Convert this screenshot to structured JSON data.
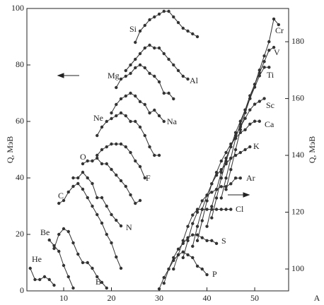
{
  "chart_data": {
    "type": "line",
    "color": "#333333",
    "grid": false,
    "xlabel": "A",
    "ylabel": "Q, МэВ",
    "y2label": "Q, МэВ",
    "xlim": [
      2.3,
      57.1
    ],
    "xticks": [
      10,
      20,
      30,
      40,
      50
    ],
    "ylim": [
      0,
      100
    ],
    "yticks": [
      0,
      20,
      40,
      60,
      80,
      100
    ],
    "y2lim": [
      92.3,
      191.7
    ],
    "y2ticks": [
      100,
      120,
      140,
      160,
      180
    ],
    "series": [
      {
        "name": "He",
        "x": [
          3,
          4,
          5,
          6,
          7,
          8
        ],
        "values": [
          8,
          4,
          4,
          5,
          4,
          2
        ]
      },
      {
        "name": "Be",
        "x": [
          7,
          8,
          9,
          10,
          11,
          12
        ],
        "values": [
          18,
          16,
          14,
          9,
          5,
          1
        ]
      },
      {
        "name": "B",
        "x": [
          8,
          9,
          10,
          11,
          12,
          13,
          14,
          15,
          16,
          17,
          18,
          19
        ],
        "values": [
          15,
          20,
          22,
          21,
          17,
          13,
          10,
          10,
          8,
          5,
          3,
          1
        ]
      },
      {
        "name": "C",
        "x": [
          9,
          10,
          11,
          12,
          13,
          14,
          15,
          16,
          17,
          18,
          19,
          20,
          21,
          22
        ],
        "values": [
          31,
          32,
          35,
          37,
          38,
          36,
          33,
          30,
          27,
          24,
          20,
          17,
          12,
          8
        ]
      },
      {
        "name": "N",
        "x": [
          12,
          13,
          14,
          15,
          16,
          17,
          18,
          19,
          20,
          21,
          22
        ],
        "values": [
          40,
          40,
          42,
          40,
          38,
          33,
          33,
          30,
          27,
          25,
          23
        ]
      },
      {
        "name": "O",
        "x": [
          14,
          15,
          16,
          17,
          18,
          19,
          20,
          21,
          22,
          23,
          24,
          25,
          26
        ],
        "values": [
          45,
          46,
          46,
          47,
          45,
          45,
          43,
          41,
          39,
          37,
          34,
          31,
          32
        ]
      },
      {
        "name": "F",
        "x": [
          17,
          18,
          19,
          20,
          21,
          22,
          23,
          24,
          25,
          26,
          27
        ],
        "values": [
          48,
          50,
          51,
          52,
          52,
          52,
          51,
          49,
          46,
          44,
          40
        ]
      },
      {
        "name": "Ne",
        "x": [
          17,
          18,
          19,
          20,
          21,
          22,
          23,
          24,
          25,
          26,
          27,
          28,
          29,
          30
        ],
        "values": [
          55,
          58,
          60,
          61,
          62,
          63,
          62,
          60,
          60,
          58,
          55,
          51,
          48,
          48
        ]
      },
      {
        "name": "Na",
        "x": [
          20,
          21,
          22,
          23,
          24,
          25,
          26,
          27,
          28,
          29,
          30,
          31
        ],
        "values": [
          63,
          66,
          68,
          69,
          70,
          69,
          67,
          66,
          63,
          64,
          62,
          60
        ]
      },
      {
        "name": "Mg",
        "x": [
          21,
          22,
          23,
          24,
          25,
          26,
          27,
          28,
          29,
          30,
          31,
          32,
          33
        ],
        "values": [
          72,
          75,
          76,
          77,
          79,
          80,
          79,
          77,
          76,
          74,
          70,
          70,
          68
        ]
      },
      {
        "name": "Al",
        "x": [
          23,
          24,
          25,
          26,
          27,
          28,
          29,
          30,
          31,
          32,
          33,
          34,
          35,
          36
        ],
        "values": [
          78,
          80,
          82,
          84,
          86,
          87,
          86,
          86,
          84,
          82,
          80,
          78,
          76,
          75
        ]
      },
      {
        "name": "Si",
        "x": [
          25,
          26,
          27,
          28,
          29,
          30,
          31,
          32,
          33,
          34,
          35,
          36,
          37,
          38
        ],
        "values": [
          88,
          92,
          94,
          96,
          97,
          98,
          99,
          99,
          97,
          95,
          93,
          92,
          91,
          90
        ]
      },
      {
        "name": "P",
        "axis": "y2",
        "x": [
          30,
          31,
          32,
          33,
          34,
          35,
          36,
          37,
          38,
          39,
          40
        ],
        "values": [
          93,
          97,
          100,
          103,
          105,
          106,
          105,
          104,
          101,
          100,
          98
        ]
      },
      {
        "name": "S",
        "axis": "y2",
        "x": [
          31,
          32,
          33,
          34,
          35,
          36,
          37,
          38,
          39,
          40,
          41,
          42
        ],
        "values": [
          95,
          100,
          104,
          107,
          109,
          111,
          112,
          112,
          111,
          110,
          110,
          109
        ]
      },
      {
        "name": "Cl",
        "axis": "y2",
        "x": [
          33,
          34,
          35,
          36,
          37,
          38,
          39,
          40,
          41,
          42,
          43,
          44,
          45
        ],
        "values": [
          100,
          105,
          110,
          115,
          119,
          121,
          121,
          121,
          121,
          121,
          121,
          121,
          121
        ]
      },
      {
        "name": "Ar",
        "axis": "y2",
        "x": [
          35,
          36,
          37,
          38,
          39,
          40,
          41,
          42,
          43,
          44,
          45,
          46,
          47
        ],
        "values": [
          104,
          110,
          116,
          120,
          124,
          126,
          127,
          128,
          129,
          129,
          130,
          132,
          132
        ]
      },
      {
        "name": "K",
        "axis": "y2",
        "x": [
          37,
          38,
          39,
          40,
          41,
          42,
          43,
          44,
          45,
          46,
          47,
          48,
          49
        ],
        "values": [
          108,
          115,
          121,
          126,
          130,
          133,
          135,
          137,
          139,
          140,
          141,
          142,
          143
        ]
      },
      {
        "name": "Ca",
        "axis": "y2",
        "x": [
          38,
          39,
          40,
          41,
          42,
          43,
          44,
          45,
          46,
          47,
          48,
          49,
          50,
          51
        ],
        "values": [
          110,
          117,
          124,
          130,
          134,
          138,
          141,
          144,
          146,
          148,
          149,
          151,
          152,
          152
        ]
      },
      {
        "name": "Sc",
        "axis": "y2",
        "x": [
          40,
          41,
          42,
          43,
          44,
          45,
          46,
          47,
          48,
          49,
          50,
          51,
          52
        ],
        "values": [
          115,
          122,
          128,
          134,
          139,
          143,
          147,
          150,
          153,
          156,
          158,
          159,
          160
        ]
      },
      {
        "name": "Ti",
        "axis": "y2",
        "x": [
          41,
          42,
          43,
          44,
          45,
          46,
          47,
          48,
          49,
          50,
          51,
          52,
          53
        ],
        "values": [
          118,
          125,
          132,
          138,
          143,
          148,
          152,
          156,
          160,
          164,
          168,
          171,
          171
        ]
      },
      {
        "name": "V",
        "axis": "y2",
        "x": [
          43,
          44,
          45,
          46,
          47,
          48,
          49,
          50,
          51,
          52,
          53,
          54
        ],
        "values": [
          125,
          132,
          139,
          146,
          151,
          156,
          161,
          165,
          169,
          173,
          177,
          178
        ]
      },
      {
        "name": "Cr",
        "axis": "y2",
        "x": [
          44,
          45,
          46,
          47,
          48,
          49,
          50,
          51,
          52,
          53,
          54,
          55
        ],
        "values": [
          128,
          135,
          142,
          149,
          155,
          160,
          165,
          170,
          175,
          180,
          188,
          186
        ]
      }
    ]
  }
}
